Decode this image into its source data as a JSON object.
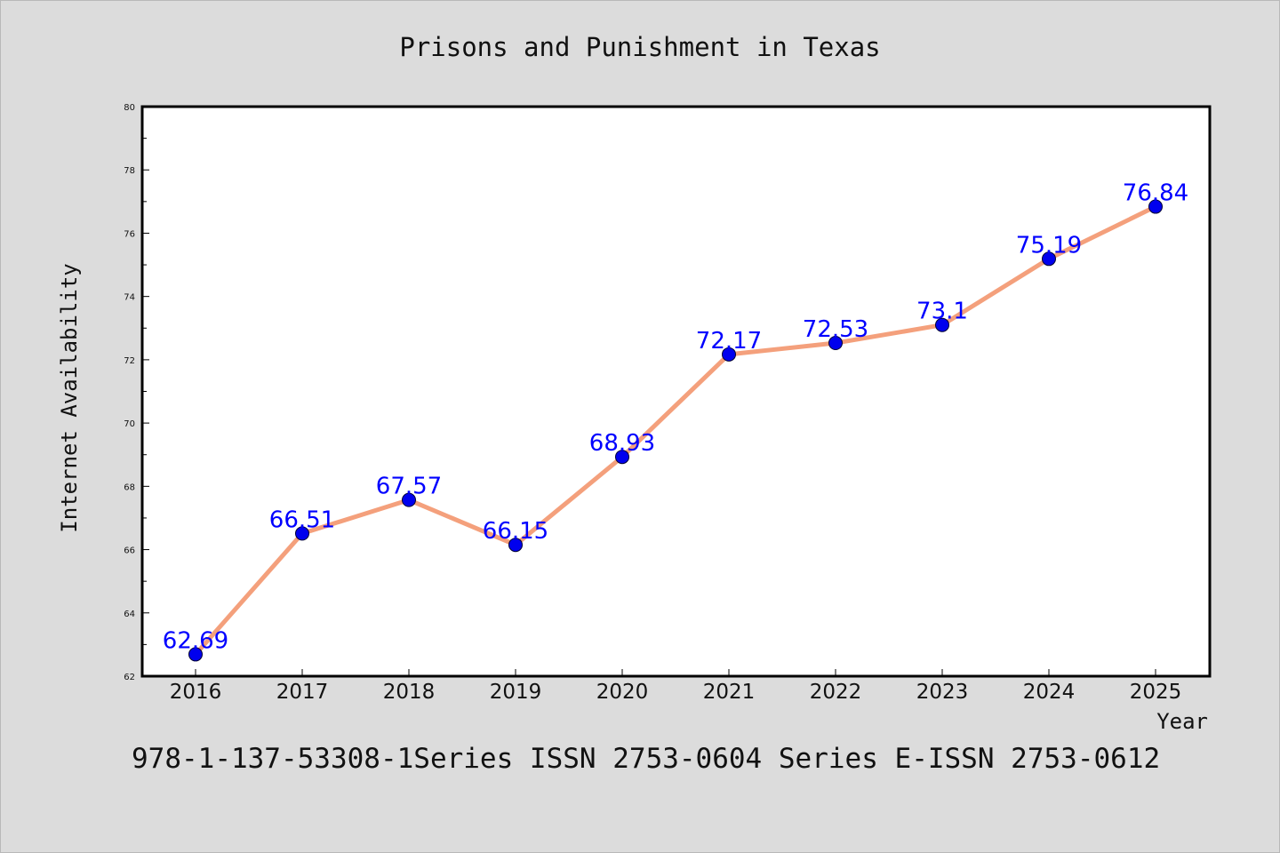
{
  "chart_data": {
    "type": "line",
    "title": "Prisons and Punishment in Texas",
    "xlabel": "Year",
    "ylabel": "Internet Availability",
    "categories": [
      "2016",
      "2017",
      "2018",
      "2019",
      "2020",
      "2021",
      "2022",
      "2023",
      "2024",
      "2025"
    ],
    "series": [
      {
        "values": [
          62.69,
          66.51,
          67.57,
          66.15,
          68.93,
          72.17,
          72.53,
          73.1,
          75.19,
          76.84
        ],
        "labels": [
          "62.69",
          "66.51",
          "67.57",
          "66.15",
          "68.93",
          "72.17",
          "72.53",
          "73.1",
          "75.19",
          "76.84"
        ],
        "line_color": "#f4a07c",
        "marker_color": "#0000ee",
        "label_color": "#0000ff"
      }
    ],
    "ylim": [
      62,
      80
    ],
    "yticks": [
      "62",
      "64",
      "66",
      "68",
      "70",
      "72",
      "74",
      "76",
      "78",
      "80"
    ],
    "grid": false,
    "footer": "978-1-137-53308-1Series ISSN 2753-0604 Series E-ISSN 2753-0612"
  }
}
